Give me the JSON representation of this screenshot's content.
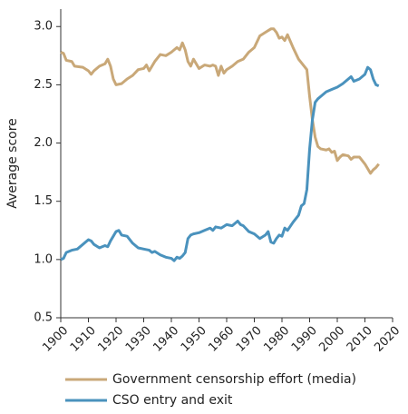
{
  "chart_data": {
    "type": "line",
    "y_label": "Average score",
    "xlim": [
      1900,
      2020
    ],
    "xticks": [
      1900,
      1910,
      1920,
      1930,
      1940,
      1950,
      1960,
      1970,
      1980,
      1990,
      2000,
      2010,
      2020
    ],
    "ylim": [
      0.5,
      3.15
    ],
    "yticks": [
      0.5,
      {
        "value": 1,
        "label": "1.0"
      },
      1.5,
      {
        "value": 2,
        "label": "2.0"
      },
      2.5,
      {
        "value": 3,
        "label": "3.0"
      }
    ],
    "grid": false,
    "series": [
      {
        "name": "Government censorship effort (media)",
        "color": "#c9a878",
        "x": [
          1900,
          1901,
          1902,
          1904,
          1905,
          1908,
          1910,
          1911,
          1912,
          1914,
          1916,
          1917,
          1918,
          1919,
          1920,
          1922,
          1924,
          1926,
          1928,
          1930,
          1931,
          1932,
          1934,
          1936,
          1938,
          1940,
          1942,
          1943,
          1944,
          1945,
          1946,
          1947,
          1948,
          1950,
          1952,
          1954,
          1955,
          1956,
          1957,
          1958,
          1959,
          1960,
          1962,
          1964,
          1966,
          1968,
          1970,
          1972,
          1974,
          1976,
          1977,
          1978,
          1979,
          1980,
          1981,
          1982,
          1984,
          1986,
          1988,
          1989,
          1990,
          1991,
          1992,
          1993,
          1994,
          1996,
          1997,
          1998,
          1999,
          2000,
          2001,
          2002,
          2004,
          2005,
          2006,
          2008,
          2010,
          2011,
          2012,
          2013,
          2014,
          2015
        ],
        "values": [
          2.78,
          2.77,
          2.71,
          2.7,
          2.66,
          2.65,
          2.62,
          2.59,
          2.62,
          2.66,
          2.68,
          2.72,
          2.66,
          2.55,
          2.5,
          2.51,
          2.55,
          2.58,
          2.63,
          2.64,
          2.67,
          2.62,
          2.7,
          2.76,
          2.75,
          2.78,
          2.82,
          2.8,
          2.86,
          2.8,
          2.7,
          2.66,
          2.72,
          2.64,
          2.67,
          2.66,
          2.67,
          2.66,
          2.58,
          2.66,
          2.6,
          2.63,
          2.66,
          2.7,
          2.72,
          2.78,
          2.82,
          2.92,
          2.95,
          2.98,
          2.98,
          2.95,
          2.9,
          2.91,
          2.88,
          2.93,
          2.82,
          2.72,
          2.66,
          2.63,
          2.4,
          2.2,
          2.05,
          1.97,
          1.95,
          1.94,
          1.95,
          1.92,
          1.93,
          1.85,
          1.88,
          1.9,
          1.89,
          1.86,
          1.88,
          1.88,
          1.82,
          1.78,
          1.74,
          1.77,
          1.79,
          1.82
        ]
      },
      {
        "name": "CSO entry and exit",
        "color": "#4a92bd",
        "x": [
          1900,
          1901,
          1902,
          1904,
          1906,
          1908,
          1910,
          1911,
          1912,
          1914,
          1916,
          1917,
          1918,
          1919,
          1920,
          1921,
          1922,
          1924,
          1926,
          1928,
          1930,
          1932,
          1933,
          1934,
          1936,
          1938,
          1940,
          1941,
          1942,
          1943,
          1944,
          1945,
          1946,
          1947,
          1948,
          1950,
          1952,
          1954,
          1955,
          1956,
          1958,
          1960,
          1962,
          1964,
          1965,
          1966,
          1968,
          1970,
          1972,
          1974,
          1975,
          1976,
          1977,
          1978,
          1979,
          1980,
          1981,
          1982,
          1984,
          1986,
          1987,
          1988,
          1989,
          1990,
          1991,
          1992,
          1993,
          1994,
          1996,
          1998,
          2000,
          2002,
          2004,
          2005,
          2006,
          2008,
          2010,
          2011,
          2012,
          2013,
          2014,
          2015
        ],
        "values": [
          1.0,
          1.01,
          1.06,
          1.08,
          1.09,
          1.13,
          1.17,
          1.16,
          1.13,
          1.1,
          1.12,
          1.11,
          1.16,
          1.2,
          1.24,
          1.25,
          1.21,
          1.2,
          1.14,
          1.1,
          1.09,
          1.08,
          1.06,
          1.07,
          1.04,
          1.02,
          1.01,
          0.99,
          1.02,
          1.01,
          1.03,
          1.06,
          1.18,
          1.21,
          1.22,
          1.23,
          1.25,
          1.27,
          1.25,
          1.28,
          1.27,
          1.3,
          1.29,
          1.33,
          1.3,
          1.29,
          1.24,
          1.22,
          1.18,
          1.21,
          1.24,
          1.15,
          1.14,
          1.18,
          1.21,
          1.2,
          1.27,
          1.25,
          1.32,
          1.38,
          1.46,
          1.48,
          1.6,
          1.95,
          2.2,
          2.35,
          2.38,
          2.4,
          2.44,
          2.46,
          2.48,
          2.51,
          2.55,
          2.57,
          2.53,
          2.55,
          2.59,
          2.65,
          2.63,
          2.55,
          2.5,
          2.49
        ]
      }
    ]
  }
}
